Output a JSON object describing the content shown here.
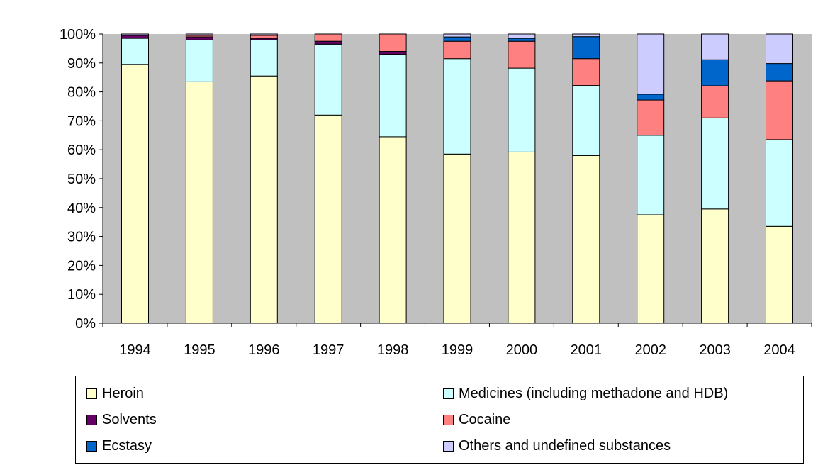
{
  "chart_data": {
    "type": "bar",
    "stacked": true,
    "percent": true,
    "categories": [
      "1994",
      "1995",
      "1996",
      "1997",
      "1998",
      "1999",
      "2000",
      "2001",
      "2002",
      "2003",
      "2004"
    ],
    "y_ticks": [
      "0%",
      "10%",
      "20%",
      "30%",
      "40%",
      "50%",
      "60%",
      "70%",
      "80%",
      "90%",
      "100%"
    ],
    "ylim": [
      0,
      100
    ],
    "grid": false,
    "plot_background": "#c0c0c0",
    "legend_position": "bottom",
    "series": [
      {
        "name": "Heroin",
        "color": "#ffffcc",
        "values": [
          89.5,
          83.5,
          85.5,
          72,
          64.5,
          58.5,
          59.2,
          58,
          37.5,
          39.5,
          33.5
        ]
      },
      {
        "name": "Medicines (including methadone and HDB)",
        "color": "#ccffff",
        "values": [
          9,
          14.5,
          12.5,
          24.5,
          28.5,
          33,
          29,
          24.2,
          27.5,
          31.5,
          30
        ]
      },
      {
        "name": "Solvents",
        "color": "#660066",
        "values": [
          1,
          1,
          0.5,
          1,
          1,
          0,
          0,
          0,
          0,
          0,
          0
        ]
      },
      {
        "name": "Cocaine",
        "color": "#ff8080",
        "values": [
          0,
          0.5,
          1,
          2.5,
          6,
          6,
          9.3,
          9.3,
          12.2,
          11.1,
          20.3
        ]
      },
      {
        "name": "Ecstasy",
        "color": "#0066cc",
        "values": [
          0,
          0,
          0,
          0,
          0,
          1.5,
          1,
          7.6,
          2,
          9,
          6
        ]
      },
      {
        "name": "Others and undefined substances",
        "color": "#ccccff",
        "values": [
          0.5,
          0.5,
          0.5,
          0,
          0,
          1,
          1.5,
          0.9,
          20.8,
          8.9,
          10.2
        ]
      }
    ]
  }
}
